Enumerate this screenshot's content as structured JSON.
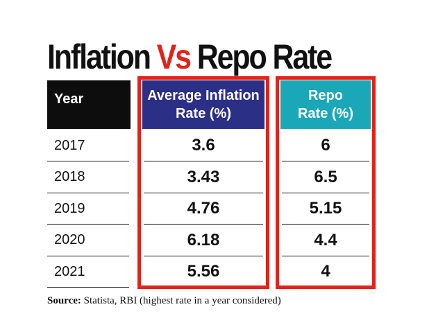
{
  "title": {
    "part1": "Inflation ",
    "part2": "Vs",
    "part3": " Repo Rate",
    "accent_color": "#e2231a"
  },
  "headers": {
    "year": "Year",
    "inflation_line1": "Average Inflation",
    "inflation_line2": "Rate (%)",
    "repo_line1": "Repo",
    "repo_line2": "Rate (%)"
  },
  "colors": {
    "year_header_bg": "#0d0d0d",
    "inflation_header_bg": "#2b2f86",
    "repo_header_bg": "#1aa8b8",
    "highlight_frame": "#e2231a"
  },
  "chart_data": {
    "type": "table",
    "title": "Inflation Vs Repo Rate",
    "columns": [
      "Year",
      "Average Inflation Rate (%)",
      "Repo Rate (%)"
    ],
    "rows": [
      {
        "year": "2017",
        "inflation": "3.6",
        "repo": "6"
      },
      {
        "year": "2018",
        "inflation": "3.43",
        "repo": "6.5"
      },
      {
        "year": "2019",
        "inflation": "4.76",
        "repo": "5.15"
      },
      {
        "year": "2020",
        "inflation": "6.18",
        "repo": "4.4"
      },
      {
        "year": "2021",
        "inflation": "5.56",
        "repo": "4"
      }
    ]
  },
  "source": {
    "label": "Source:",
    "text": " Statista, RBI (highest rate in a year considered)"
  }
}
